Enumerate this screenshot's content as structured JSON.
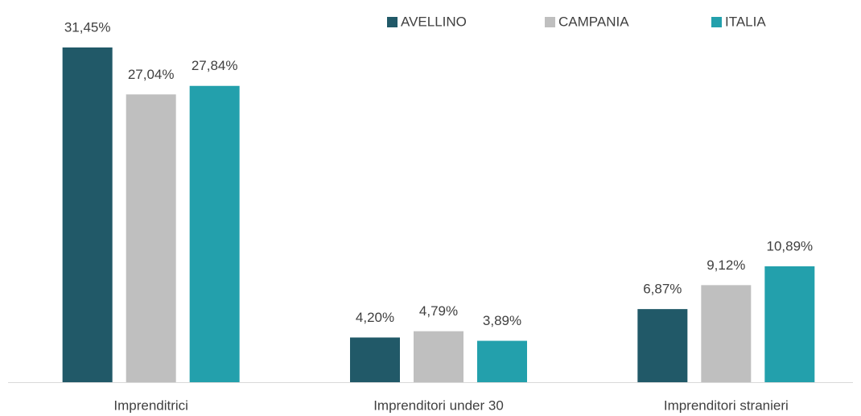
{
  "chart_data": {
    "type": "bar",
    "categories": [
      "Imprenditrici",
      "Imprenditori under 30",
      "Imprenditori stranieri"
    ],
    "series": [
      {
        "name": "AVELLINO",
        "color": "#215968",
        "values": [
          31.45,
          4.2,
          6.87
        ],
        "value_labels": [
          "31,45%",
          "4,20%",
          "6,87%"
        ]
      },
      {
        "name": "CAMPANIA",
        "color": "#bfbfbf",
        "values": [
          27.04,
          4.79,
          9.12
        ],
        "value_labels": [
          "27,04%",
          "4,79%",
          "9,12%"
        ]
      },
      {
        "name": "ITALIA",
        "color": "#23a0ac",
        "values": [
          27.84,
          3.89,
          10.89
        ],
        "value_labels": [
          "27,84%",
          "3,89%",
          "10,89%"
        ]
      }
    ],
    "legend": "top"
  }
}
